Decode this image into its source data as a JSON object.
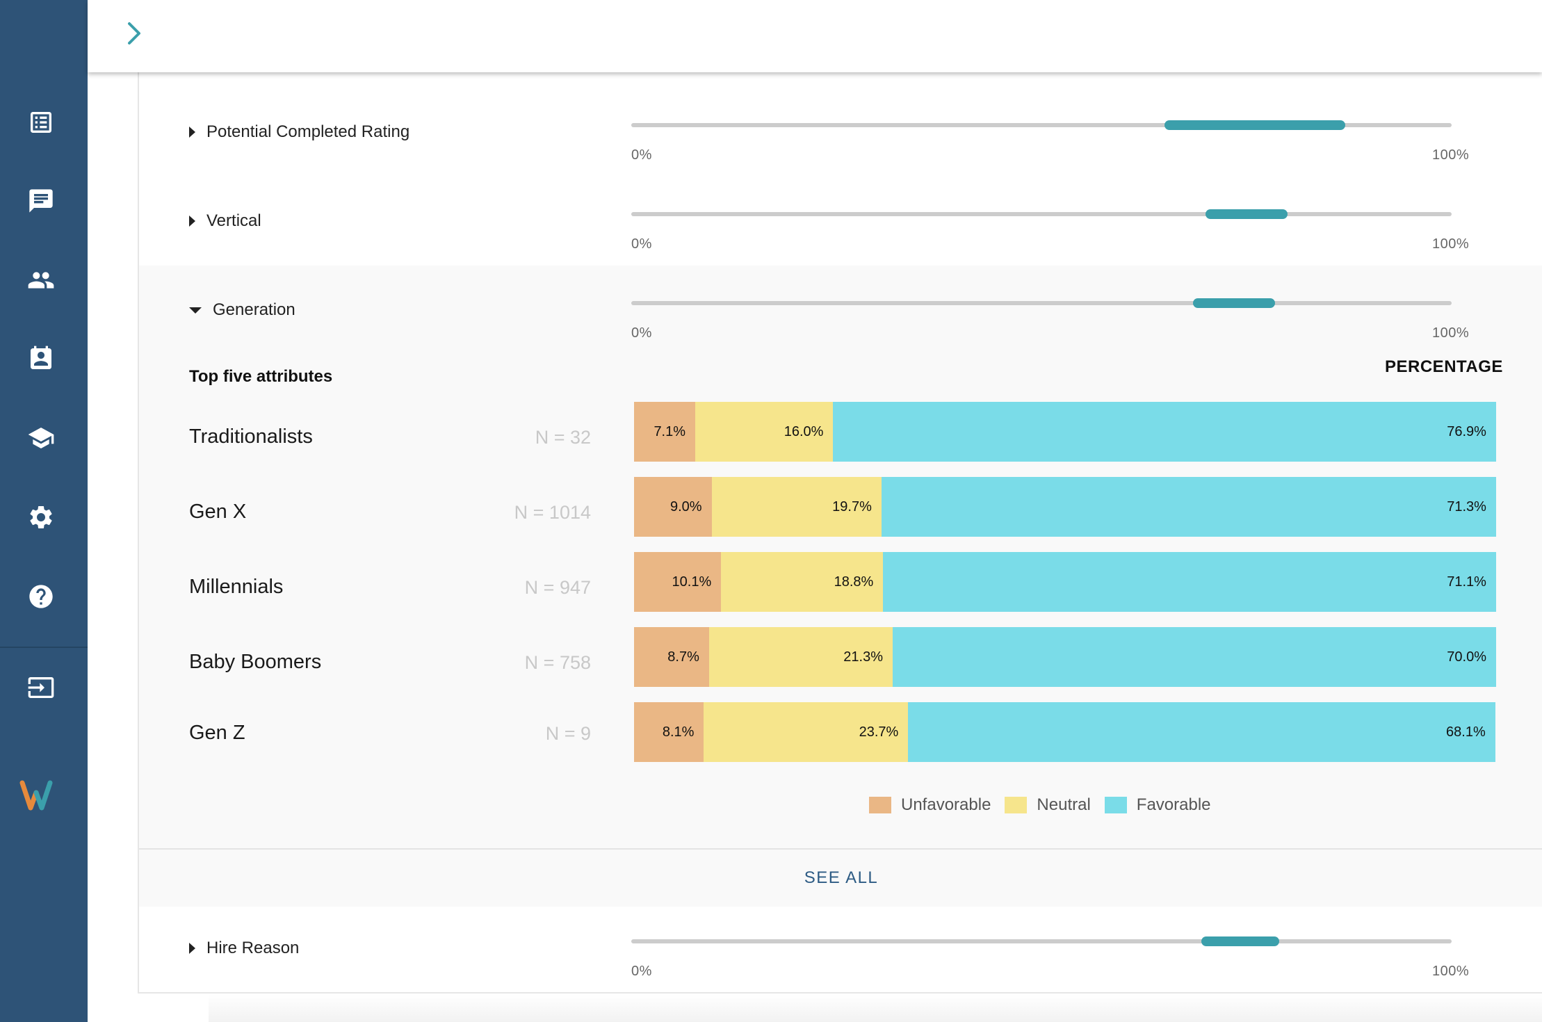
{
  "sidebar": {
    "items": [
      {
        "icon": "list-icon"
      },
      {
        "icon": "chat-icon"
      },
      {
        "icon": "people-icon"
      },
      {
        "icon": "contact-card-icon"
      },
      {
        "icon": "school-icon"
      },
      {
        "icon": "gear-icon"
      },
      {
        "icon": "help-icon"
      },
      {
        "icon": "logout-icon"
      }
    ],
    "logo": {
      "text": "W",
      "colors": [
        "#e68a3c",
        "#3b9fab"
      ]
    }
  },
  "filters": [
    {
      "label": "Potential Completed Rating",
      "expanded": false,
      "range": [
        0.65,
        0.87
      ],
      "min_label": "0%",
      "max_label": "100%"
    },
    {
      "label": "Vertical",
      "expanded": false,
      "range": [
        0.7,
        0.8
      ],
      "min_label": "0%",
      "max_label": "100%"
    },
    {
      "label": "Generation",
      "expanded": true,
      "range": [
        0.685,
        0.785
      ],
      "min_label": "0%",
      "max_label": "100%"
    },
    {
      "label": "Hire Reason",
      "expanded": false,
      "range": [
        0.695,
        0.79
      ],
      "min_label": "0%",
      "max_label": "100%"
    }
  ],
  "generation": {
    "subheading": "Top five attributes",
    "column_heading": "PERCENTAGE",
    "see_all": "SEE ALL"
  },
  "chart_data": {
    "type": "bar",
    "stacked": true,
    "orientation": "horizontal",
    "categories": [
      "Traditionalists",
      "Gen X",
      "Millennials",
      "Baby Boomers",
      "Gen Z"
    ],
    "n_labels": [
      "N = 32",
      "N = 1014",
      "N = 947",
      "N = 758",
      "N = 9"
    ],
    "series": [
      {
        "name": "Unfavorable",
        "color": "#eab785",
        "values": [
          7.1,
          9.0,
          10.1,
          8.7,
          8.1
        ],
        "labels": [
          "7.1%",
          "9.0%",
          "10.1%",
          "8.7%",
          "8.1%"
        ]
      },
      {
        "name": "Neutral",
        "color": "#f6e58c",
        "values": [
          16.0,
          19.7,
          18.8,
          21.3,
          23.7
        ],
        "labels": [
          "16.0%",
          "19.7%",
          "18.8%",
          "21.3%",
          "23.7%"
        ]
      },
      {
        "name": "Favorable",
        "color": "#7adce8",
        "values": [
          76.9,
          71.3,
          71.1,
          70.0,
          68.1
        ],
        "labels": [
          "76.9%",
          "71.3%",
          "71.1%",
          "70.0%",
          "68.1%"
        ]
      }
    ],
    "legend_position": "bottom-center",
    "xlim": [
      0,
      100
    ]
  }
}
